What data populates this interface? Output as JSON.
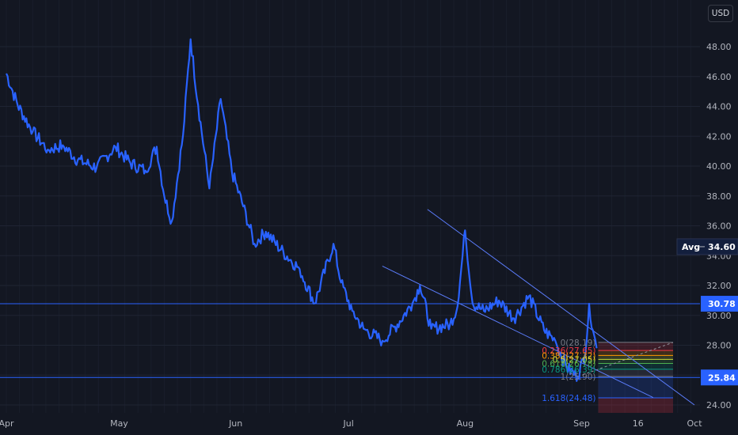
{
  "currency_badge": "USD",
  "colors": {
    "background": "#131722",
    "price_line": "#2962ff",
    "horizontal_line": "#2962ff",
    "channel_line": "#5b7cfa",
    "badge_blue": "#2962ff",
    "avg_badge": "#131f3d",
    "fib_red": "#f23645",
    "fib_orange": "#ff9800",
    "fib_yellow": "#cddc39",
    "fib_green": "#4caf50",
    "fib_teal": "#089981",
    "fib_blue": "#2962ff",
    "fib_gray": "#787b86"
  },
  "chart_data": {
    "type": "line",
    "ylim": [
      23.5,
      49.5
    ],
    "y_ticks": [
      "24.00",
      "26.00",
      "28.00",
      "30.00",
      "32.00",
      "34.00",
      "36.00",
      "38.00",
      "40.00",
      "42.00",
      "44.00",
      "46.00",
      "48.00"
    ],
    "x_ticks": [
      "Apr",
      "May",
      "Jun",
      "Jul",
      "Aug",
      "Sep",
      "16",
      "Oct"
    ],
    "series": [
      {
        "points": [
          [
            "Apr 1",
            46.2
          ],
          [
            "Apr 4",
            44.1
          ],
          [
            "Apr 8",
            42.3
          ],
          [
            "Apr 12",
            41.1
          ],
          [
            "Apr 16",
            41.4
          ],
          [
            "Apr 20",
            40.4
          ],
          [
            "Apr 25",
            39.9
          ],
          [
            "Apr 30",
            41.3
          ],
          [
            "May 4",
            40.2
          ],
          [
            "May 8",
            39.7
          ],
          [
            "May 11",
            41.3
          ],
          [
            "May 13",
            38.0
          ],
          [
            "May 15",
            36.3
          ],
          [
            "May 18",
            42.1
          ],
          [
            "May 20",
            48.5
          ],
          [
            "May 22",
            44.1
          ],
          [
            "May 25",
            38.5
          ],
          [
            "May 28",
            44.5
          ],
          [
            "May 31",
            39.6
          ],
          [
            "Jun 3",
            37.3
          ],
          [
            "Jun 6",
            34.8
          ],
          [
            "Jun 9",
            35.6
          ],
          [
            "Jun 13",
            34.4
          ],
          [
            "Jun 18",
            33.1
          ],
          [
            "Jun 22",
            30.8
          ],
          [
            "Jun 27",
            34.8
          ],
          [
            "Jun 29",
            32.2
          ],
          [
            "Jul 2",
            30.3
          ],
          [
            "Jul 5",
            29.1
          ],
          [
            "Jul 10",
            28.3
          ],
          [
            "Jul 14",
            29.4
          ],
          [
            "Jul 18",
            30.8
          ],
          [
            "Jul 20",
            32.0
          ],
          [
            "Jul 23",
            29.1
          ],
          [
            "Jul 28",
            29.4
          ],
          [
            "Jul 30",
            30.6
          ],
          [
            "Aug 1",
            35.7
          ],
          [
            "Aug 3",
            30.8
          ],
          [
            "Aug 6",
            30.3
          ],
          [
            "Aug 10",
            31.0
          ],
          [
            "Aug 14",
            29.8
          ],
          [
            "Aug 18",
            31.3
          ],
          [
            "Aug 22",
            29.0
          ],
          [
            "Aug 25",
            28.3
          ],
          [
            "Aug 28",
            26.5
          ],
          [
            "Aug 31",
            25.9
          ],
          [
            "Sep 2",
            27.5
          ],
          [
            "Sep 3",
            30.78
          ],
          [
            "Sep 4",
            29.0
          ],
          [
            "Sep 5",
            27.8
          ]
        ]
      }
    ],
    "horizontal_lines": [
      30.78,
      25.84
    ],
    "channel_lines": [
      {
        "from": [
          "Jul 22",
          37.1
        ],
        "to": [
          "Oct 1",
          24.0
        ]
      },
      {
        "from": [
          "Jul 10",
          33.3
        ],
        "to": [
          "Sep 20",
          24.5
        ]
      }
    ],
    "fib_retracement": {
      "levels": [
        {
          "ratio": "0",
          "value": "28.19",
          "color": "#787b86"
        },
        {
          "ratio": "0.236",
          "value": "27.65",
          "color": "#f23645"
        },
        {
          "ratio": "0.382",
          "value": "27.32",
          "color": "#ff9800"
        },
        {
          "ratio": "0.5",
          "value": "27.05",
          "color": "#cddc39"
        },
        {
          "ratio": "0.618",
          "value": "26.78",
          "color": "#4caf50"
        },
        {
          "ratio": "0.786",
          "value": "26.39",
          "color": "#089981"
        },
        {
          "ratio": "1",
          "value": "25.90",
          "color": "#787b86"
        },
        {
          "ratio": "1.618",
          "value": "24.48",
          "color": "#2962ff"
        }
      ]
    },
    "price_badges": [
      {
        "label": "",
        "value": "30.78"
      },
      {
        "label": "",
        "value": "25.84"
      },
      {
        "label": "Avg",
        "value": "34.60"
      }
    ]
  }
}
